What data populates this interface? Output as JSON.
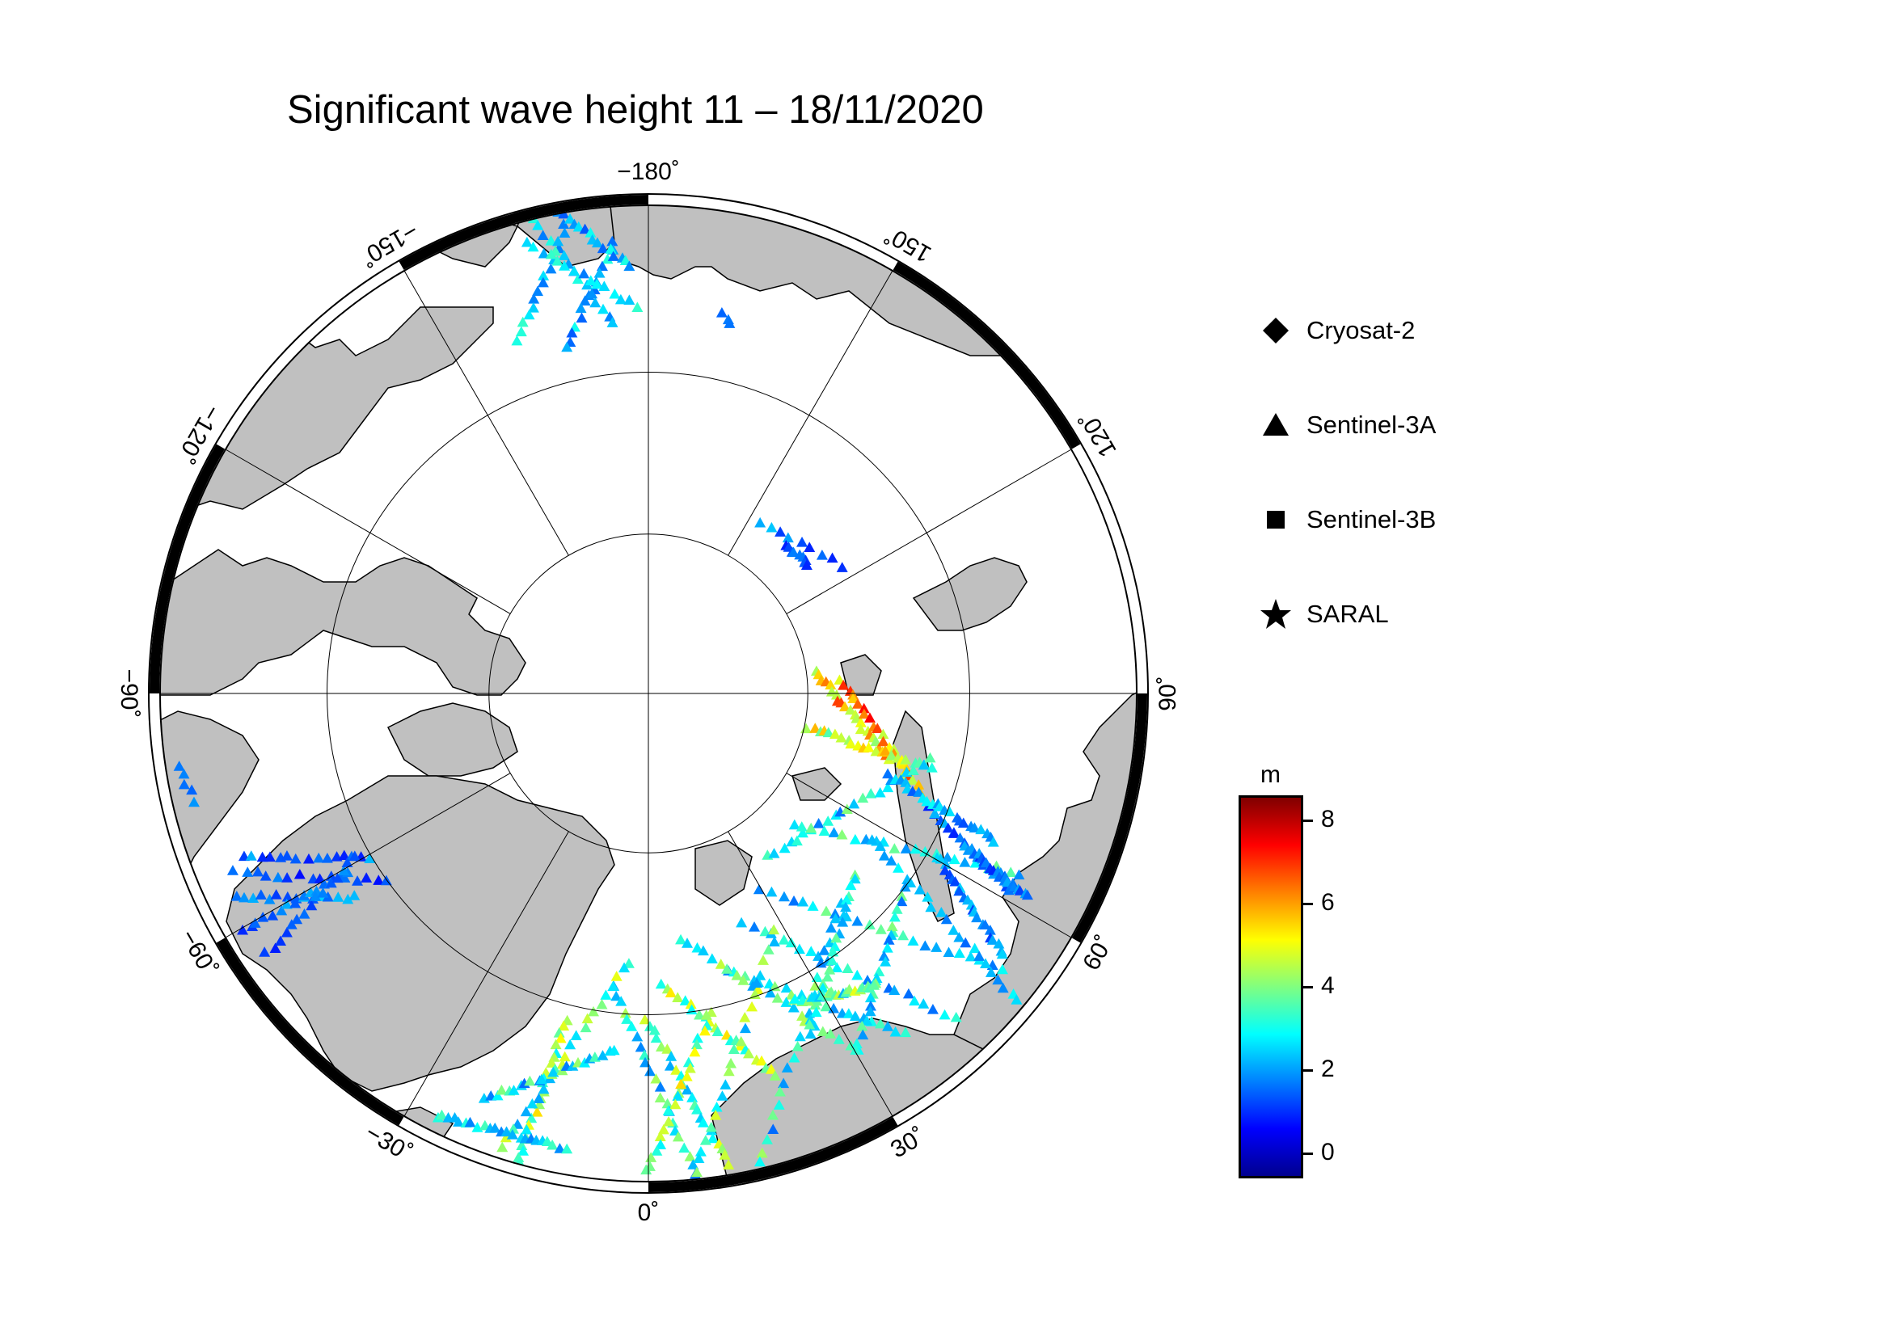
{
  "title": "Significant wave height 11 – 18/11/2020",
  "longitude_labels": [
    {
      "text": "−180˚",
      "lon": 180
    },
    {
      "text": "150˚",
      "lon": 150
    },
    {
      "text": "120˚",
      "lon": 120
    },
    {
      "text": "90˚",
      "lon": 90
    },
    {
      "text": "60˚",
      "lon": 60
    },
    {
      "text": "30˚",
      "lon": 30
    },
    {
      "text": "0˚",
      "lon": 0
    },
    {
      "text": "−30˚",
      "lon": -30
    },
    {
      "text": "−60˚",
      "lon": -60
    },
    {
      "text": "−90˚",
      "lon": -90
    },
    {
      "text": "−120˚",
      "lon": -120
    },
    {
      "text": "−150˚",
      "lon": -150
    }
  ],
  "legend": {
    "items": [
      {
        "label": "Cryosat-2",
        "icon": "diamond-icon"
      },
      {
        "label": "Sentinel-3A",
        "icon": "triangle-icon"
      },
      {
        "label": "Sentinel-3B",
        "icon": "square-icon"
      },
      {
        "label": "SARAL",
        "icon": "star-icon"
      }
    ]
  },
  "colorbar": {
    "unit": "m",
    "range": [
      -0.6,
      8.6
    ],
    "ticks": [
      {
        "value": 0,
        "label": "0"
      },
      {
        "value": 2,
        "label": "2"
      },
      {
        "value": 4,
        "label": "4"
      },
      {
        "value": 6,
        "label": "6"
      },
      {
        "value": 8,
        "label": "8"
      }
    ],
    "colors": [
      "#00008f",
      "#0000ff",
      "#0080ff",
      "#00ffff",
      "#80ff80",
      "#ffff00",
      "#ff8000",
      "#ff0000",
      "#800000"
    ]
  },
  "map": {
    "projection": "north polar stereographic",
    "latitude_circles": [
      80,
      70,
      60
    ],
    "meridian_spacing_deg": 30,
    "ocean_color": "#ffffff",
    "land_color": "#c0c0c0"
  }
}
